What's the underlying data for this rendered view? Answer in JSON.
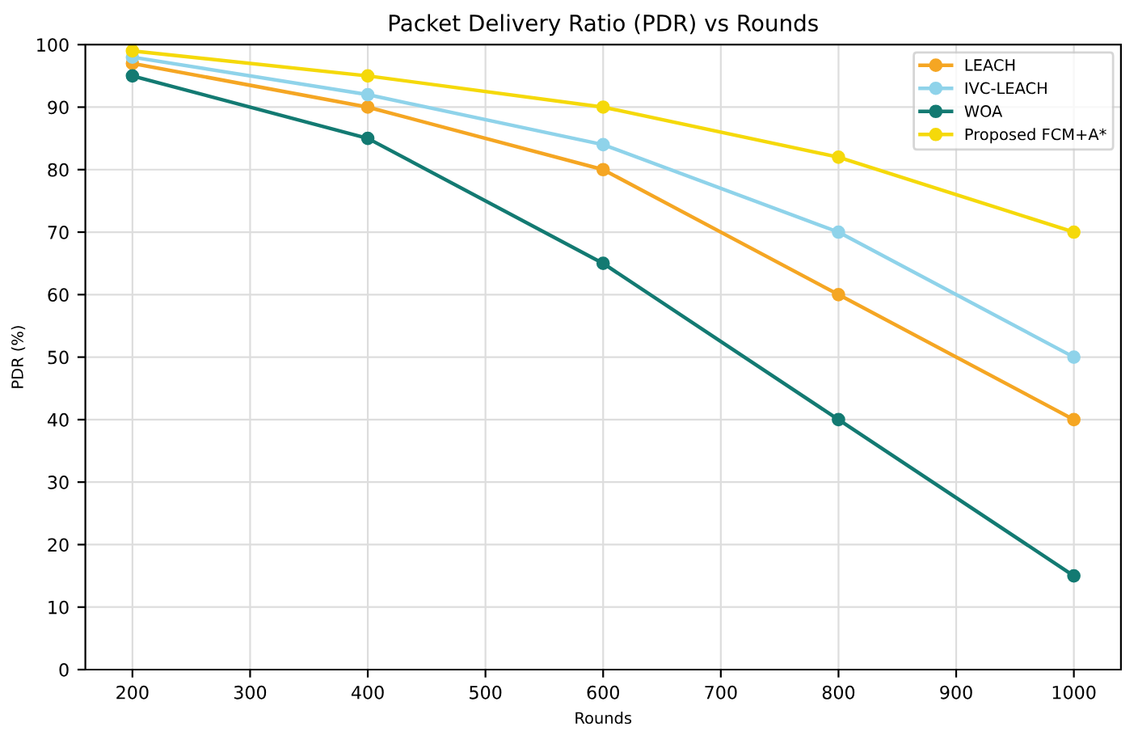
{
  "chart_data": {
    "type": "line",
    "title": "Packet Delivery Ratio (PDR) vs Rounds",
    "xlabel": "Rounds",
    "ylabel": "PDR (%)",
    "x": [
      200,
      400,
      600,
      800,
      1000
    ],
    "series": [
      {
        "name": "LEACH",
        "color": "#f5a623",
        "values": [
          97,
          90,
          80,
          60,
          40
        ]
      },
      {
        "name": "IVC-LEACH",
        "color": "#8fd3ea",
        "values": [
          98,
          92,
          84,
          70,
          50
        ]
      },
      {
        "name": "WOA",
        "color": "#137a72",
        "values": [
          95,
          85,
          65,
          40,
          15
        ]
      },
      {
        "name": "Proposed FCM+A*",
        "color": "#f5d90a",
        "values": [
          99,
          95,
          90,
          82,
          70
        ]
      }
    ],
    "xlim": [
      160,
      1040
    ],
    "xticks": [
      200,
      300,
      400,
      500,
      600,
      700,
      800,
      900,
      1000
    ],
    "ylim": [
      0,
      100
    ],
    "yticks": [
      0,
      10,
      20,
      30,
      40,
      50,
      60,
      70,
      80,
      90,
      100
    ],
    "grid": true,
    "legend": "top right",
    "marker": "circle",
    "line_style": "solid"
  }
}
